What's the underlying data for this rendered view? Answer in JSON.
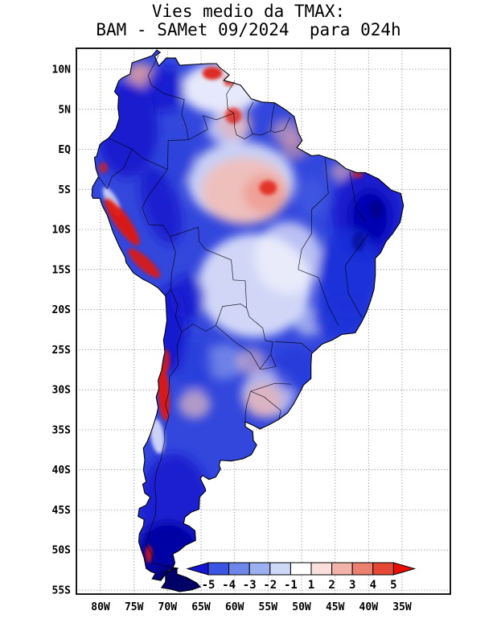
{
  "title": {
    "line1": "Vies medio da TMAX:",
    "line2": "BAM - SAMet 09/2024  para 024h"
  },
  "axes": {
    "lat_labels": [
      "10N",
      "5N",
      "EQ",
      "5S",
      "10S",
      "15S",
      "20S",
      "25S",
      "30S",
      "35S",
      "40S",
      "45S",
      "50S",
      "55S"
    ],
    "lon_labels": [
      "80W",
      "75W",
      "70W",
      "65W",
      "60W",
      "55W",
      "50W",
      "45W",
      "40W",
      "35W"
    ]
  },
  "colorbar": {
    "labels": [
      "-5",
      "-4",
      "-3",
      "-2",
      "-1",
      "1",
      "2",
      "3",
      "4",
      "5"
    ],
    "cell_colors": [
      "#3a55e2",
      "#6e86ea",
      "#9cb0f0",
      "#cdd8f7",
      "#ffffff",
      "#fadfdb",
      "#f4b3a9",
      "#ec8070",
      "#e64836"
    ],
    "arrow_left_color": "#1414d2",
    "arrow_right_color": "#ea0e00"
  },
  "chart_data": {
    "type": "heatmap",
    "title": "Vies medio da TMAX: BAM - SAMet 09/2024 para 024h",
    "region": "South America",
    "x_ticks": [
      "80W",
      "75W",
      "70W",
      "65W",
      "60W",
      "55W",
      "50W",
      "45W",
      "40W",
      "35W"
    ],
    "y_ticks": [
      "10N",
      "5N",
      "EQ",
      "5S",
      "10S",
      "15S",
      "20S",
      "25S",
      "30S",
      "35S",
      "40S",
      "45S",
      "50S",
      "55S"
    ],
    "colorbar_levels": [
      -5,
      -4,
      -3,
      -2,
      -1,
      1,
      2,
      3,
      4,
      5
    ],
    "colorbar_orientation": "horizontal-bottom-right",
    "grid": "dotted",
    "notable_regions": [
      {
        "area": "most of the continent",
        "bias_estimate": "-3 to -5"
      },
      {
        "area": "central Amazon (~5S, 50-65W)",
        "bias_estimate": "+1 to +2"
      },
      {
        "area": "Peruvian coast and Andes (5S-15S)",
        "bias_estimate": "+3 to +5"
      },
      {
        "area": "central Chile Andes (26S-33S)",
        "bias_estimate": "+3 to +5"
      },
      {
        "area": "northeast and east Brazil",
        "bias_estimate": "-4 to -5"
      },
      {
        "area": "Patagonia south of 45S",
        "bias_estimate": "-5 or less"
      },
      {
        "area": "central Brazil / Bolivia / Paraguay (15S-22S)",
        "bias_estimate": "-1 to +1"
      },
      {
        "area": "northern Venezuela / Guyana coast spots",
        "bias_estimate": "+4 to +5"
      }
    ]
  }
}
